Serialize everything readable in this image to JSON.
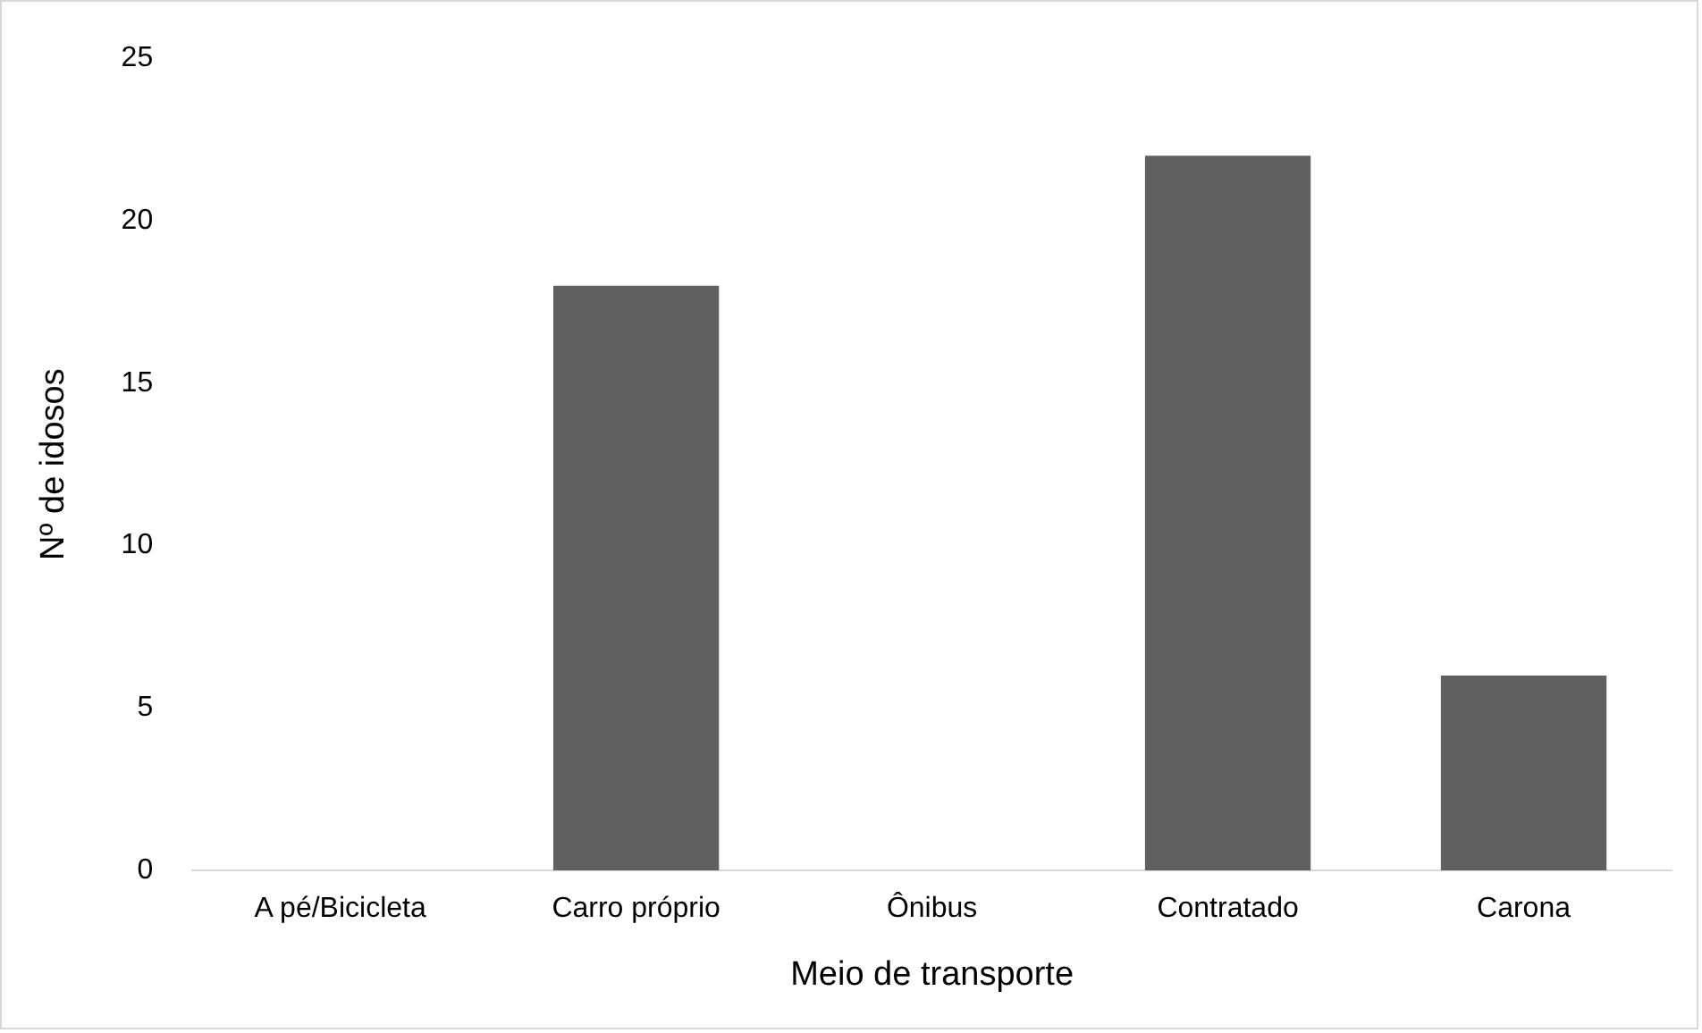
{
  "chart_data": {
    "type": "bar",
    "xlabel": "Meio de transporte",
    "ylabel": "Nº de idosos",
    "categories": [
      "A pé/Bicicleta",
      "Carro próprio",
      "Ônibus",
      "Contratado",
      "Carona"
    ],
    "values": [
      0,
      18,
      0,
      22,
      6
    ],
    "color": "#606060",
    "ylim": [
      0,
      25
    ],
    "yticks": [
      0,
      5,
      10,
      15,
      20,
      25
    ],
    "grid": false,
    "legend": false
  }
}
